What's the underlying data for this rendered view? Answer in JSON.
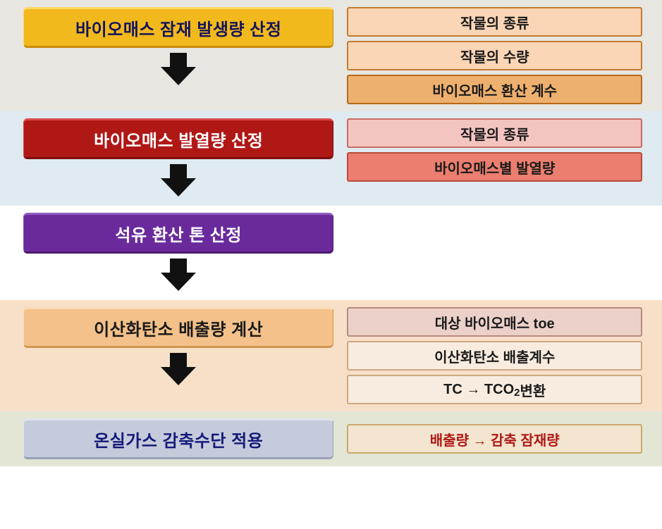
{
  "sections": [
    {
      "bg": "#e8e6e1",
      "step": {
        "text": "바이오매스 잠재 발생량 산정",
        "bg": "#f2b91d",
        "color": "#14145c",
        "borderTop": "#ffd866",
        "borderBottom": "#c98b0a"
      },
      "arrow": true,
      "items": [
        {
          "text": "작물의 종류",
          "bg": "#fbd6b6",
          "border": "#c37a2d",
          "color": "#1a1a1a"
        },
        {
          "text": "작물의 수량",
          "bg": "#fbd6b6",
          "border": "#c37a2d",
          "color": "#1a1a1a"
        },
        {
          "text": "바이오매스 환산 계수",
          "bg": "#eeb06e",
          "border": "#b56a1c",
          "color": "#1a1a1a"
        }
      ]
    },
    {
      "bg": "#dfeaf1",
      "step": {
        "text": "바이오매스 발열량 산정",
        "bg": "#b01816",
        "color": "#ffffff",
        "borderTop": "#d94b49",
        "borderBottom": "#7a0e0d"
      },
      "arrow": true,
      "items": [
        {
          "text": "작물의 종류",
          "bg": "#f4c4c0",
          "border": "#c96a62",
          "color": "#1a1a1a"
        },
        {
          "text": "바이오매스별 발열량",
          "bg": "#eb7e6e",
          "border": "#b84a3a",
          "color": "#1a1a1a"
        }
      ]
    },
    {
      "bg": "#ffffff",
      "step": {
        "text": "석유 환산 톤 산정",
        "bg": "#6a2a9c",
        "color": "#ffffff",
        "borderTop": "#915cc0",
        "borderBottom": "#4a1c70"
      },
      "arrow": true,
      "items": []
    },
    {
      "bg": "#f8e0c8",
      "step": {
        "text": "이산화탄소 배출량 계산",
        "bg": "#f3c189",
        "color": "#1a1a1a",
        "borderTop": "#f9dbb5",
        "borderBottom": "#cf9653"
      },
      "arrow": true,
      "items": [
        {
          "text": "대상 바이오매스 toe",
          "bg": "#ebd1c9",
          "border": "#b88a7d",
          "color": "#1a1a1a"
        },
        {
          "text": "이산화탄소 배출계수",
          "bg": "#f7ecdf",
          "border": "#caa97f",
          "color": "#1a1a1a"
        },
        {
          "html": "TC &#8594; TCO<span class=\"sub\">2</span> 변환",
          "bg": "#f7ecdf",
          "border": "#caa97f",
          "color": "#1a1a1a"
        }
      ]
    },
    {
      "bg": "#e3e6d4",
      "step": {
        "text": "온실가스 감축수단 적용",
        "bg": "#c6cbdb",
        "color": "#141a7a",
        "borderTop": "#e1e4ee",
        "borderBottom": "#9aa0b8"
      },
      "arrow": false,
      "items": [
        {
          "html": "배출량 &#8594; 감축 잠재량",
          "bg": "#f3e5cf",
          "border": "#c9a96a",
          "color": "#b01816"
        }
      ]
    }
  ],
  "arrow_color": "#111111"
}
